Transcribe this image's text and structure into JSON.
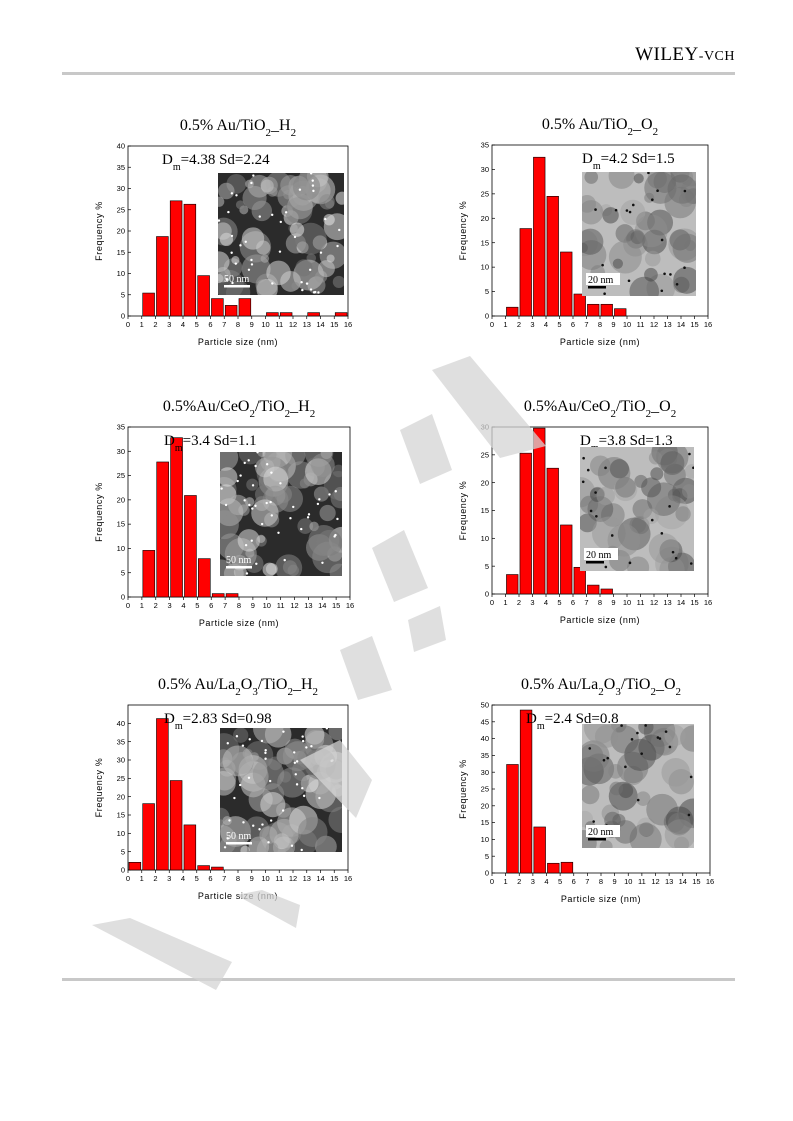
{
  "header": {
    "publisher_main": "WILEY",
    "publisher_sep": "-",
    "publisher_sub": "VCH"
  },
  "watermark": {
    "text": "REVIEW",
    "color": "#d4d4d4"
  },
  "colors": {
    "bar": "#ff0000",
    "bar_stroke": "#000000"
  },
  "chart_data": [
    {
      "type": "bar",
      "title_parts": [
        "0.5% Au/TiO",
        "2",
        "_H",
        "2"
      ],
      "dm_parts": [
        "D",
        "m",
        "=4.38 Sd=2.24"
      ],
      "scale_label": "50 nm",
      "micrograph": "dark-field",
      "xlabel": "Particle size (nm)",
      "ylabel": "Frequency %",
      "ylim": [
        0,
        40
      ],
      "yticks": [
        0,
        5,
        10,
        15,
        20,
        25,
        30,
        35,
        40
      ],
      "xlim": [
        0,
        16
      ],
      "xticks": [
        0,
        1,
        2,
        3,
        4,
        5,
        6,
        7,
        8,
        9,
        10,
        11,
        12,
        13,
        14,
        15,
        16
      ],
      "x": [
        1.5,
        2.5,
        3.5,
        4.5,
        5.5,
        6.5,
        7.5,
        8.5,
        10.5,
        11.5,
        13.5,
        15.5
      ],
      "values": [
        5.4,
        18.7,
        27.1,
        26.3,
        9.5,
        4.1,
        2.5,
        4.1,
        0.8,
        0.8,
        0.8,
        0.8
      ]
    },
    {
      "type": "bar",
      "title_parts": [
        "0.5% Au/TiO",
        "2",
        "_O",
        "2"
      ],
      "dm_parts": [
        "D",
        "m",
        "=4.2 Sd=1.5"
      ],
      "scale_label": "20 nm",
      "micrograph": "bright-field",
      "xlabel": "Particle size (nm)",
      "ylabel": "Frequency %",
      "ylim": [
        0,
        35
      ],
      "yticks": [
        0,
        5,
        10,
        15,
        20,
        25,
        30,
        35
      ],
      "xlim": [
        0,
        16
      ],
      "xticks": [
        0,
        1,
        2,
        3,
        4,
        5,
        6,
        7,
        8,
        9,
        10,
        11,
        12,
        13,
        14,
        15,
        16
      ],
      "x": [
        1.5,
        2.5,
        3.5,
        4.5,
        5.5,
        6.5,
        7.5,
        8.5,
        9.5
      ],
      "values": [
        1.8,
        17.9,
        32.5,
        24.5,
        13.1,
        4.5,
        2.4,
        2.4,
        1.5
      ]
    },
    {
      "type": "bar",
      "title_parts": [
        "0.5%Au/CeO",
        "2",
        "/TiO",
        "2",
        "_H",
        "2"
      ],
      "dm_parts": [
        "D",
        "m",
        "=3.4 Sd=1.1"
      ],
      "scale_label": "50 nm",
      "micrograph": "dark-field",
      "xlabel": "Particle size (nm)",
      "ylabel": "Frequency %",
      "ylim": [
        0,
        35
      ],
      "yticks": [
        0,
        5,
        10,
        15,
        20,
        25,
        30,
        35
      ],
      "xlim": [
        0,
        16
      ],
      "xticks": [
        0,
        1,
        2,
        3,
        4,
        5,
        6,
        7,
        8,
        9,
        10,
        11,
        12,
        13,
        14,
        15,
        16
      ],
      "x": [
        1.5,
        2.5,
        3.5,
        4.5,
        5.5,
        6.5,
        7.5
      ],
      "values": [
        9.6,
        27.8,
        32.8,
        20.9,
        7.9,
        0.7,
        0.7
      ]
    },
    {
      "type": "bar",
      "title_parts": [
        "0.5%Au/CeO",
        "2",
        "/TiO",
        "2",
        "_O",
        "2"
      ],
      "dm_parts": [
        "D",
        "m",
        "=3.8 Sd=1.3"
      ],
      "scale_label": "20 nm",
      "micrograph": "bright-field",
      "xlabel": "Particle size (nm)",
      "ylabel": "Frequency %",
      "ylim": [
        0,
        30
      ],
      "yticks": [
        0,
        5,
        10,
        15,
        20,
        25,
        30
      ],
      "xlim": [
        0,
        16
      ],
      "xticks": [
        0,
        1,
        2,
        3,
        4,
        5,
        6,
        7,
        8,
        9,
        10,
        11,
        12,
        13,
        14,
        15,
        16
      ],
      "x": [
        1.5,
        2.5,
        3.5,
        4.5,
        5.5,
        6.5,
        7.5,
        8.5
      ],
      "values": [
        3.5,
        25.3,
        29.8,
        22.6,
        12.4,
        4.8,
        1.6,
        0.9
      ]
    },
    {
      "type": "bar",
      "title_parts": [
        "0.5% Au/La",
        "2",
        "O",
        "3",
        "/TiO",
        "2",
        "_H",
        "2"
      ],
      "dm_parts": [
        "D",
        "m",
        "=2.83 Sd=0.98"
      ],
      "scale_label": "50 nm",
      "micrograph": "dark-field",
      "xlabel": "Particle size (nm)",
      "ylabel": "Frequency %",
      "ylim": [
        0,
        45
      ],
      "yticks": [
        0,
        5,
        10,
        15,
        20,
        25,
        30,
        35,
        40
      ],
      "xlim": [
        0,
        16
      ],
      "xticks": [
        0,
        1,
        2,
        3,
        4,
        5,
        6,
        7,
        8,
        9,
        10,
        11,
        12,
        13,
        14,
        15,
        16
      ],
      "x": [
        0.5,
        1.5,
        2.5,
        3.5,
        4.5,
        5.5,
        6.5
      ],
      "values": [
        2.1,
        18.1,
        41.3,
        24.4,
        12.3,
        1.2,
        0.8
      ]
    },
    {
      "type": "bar",
      "title_parts": [
        "0.5% Au/La",
        "2",
        "O",
        "3",
        "/TiO",
        "2",
        "_O",
        "2"
      ],
      "dm_parts": [
        "D",
        "m",
        "=2.4 Sd=0.8"
      ],
      "scale_label": "20 nm",
      "micrograph": "bright-field",
      "xlabel": "Particle size (nm)",
      "ylabel": "Frequency %",
      "ylim": [
        0,
        50
      ],
      "yticks": [
        0,
        5,
        10,
        15,
        20,
        25,
        30,
        35,
        40,
        45,
        50
      ],
      "xlim": [
        0,
        16
      ],
      "xticks": [
        0,
        1,
        2,
        3,
        4,
        5,
        6,
        7,
        8,
        9,
        10,
        11,
        12,
        13,
        14,
        15,
        16
      ],
      "x": [
        1.5,
        2.5,
        3.5,
        4.5,
        5.5
      ],
      "values": [
        32.3,
        48.5,
        13.7,
        2.9,
        3.2
      ]
    }
  ]
}
